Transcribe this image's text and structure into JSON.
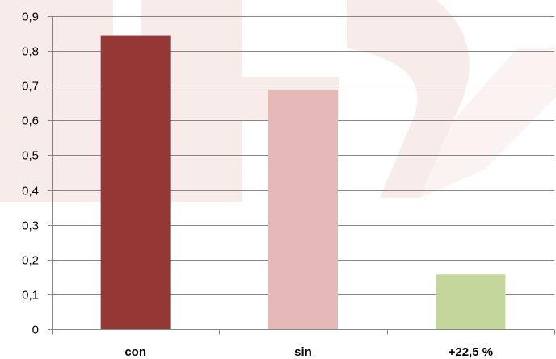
{
  "chart_data": {
    "type": "bar",
    "categories": [
      "con",
      "sin",
      "+22,5 %"
    ],
    "values": [
      0.843,
      0.688,
      0.157
    ],
    "bar_colors": [
      "#953735",
      "#e6b9b8",
      "#c3d69b"
    ],
    "ylim": [
      0,
      0.9
    ],
    "y_ticks": [
      0,
      0.1,
      0.2,
      0.3,
      0.4,
      0.5,
      0.6,
      0.7,
      0.8,
      0.9
    ],
    "y_tick_labels": [
      "0",
      "0,1",
      "0,2",
      "0,3",
      "0,4",
      "0,5",
      "0,6",
      "0,7",
      "0,8",
      "0,9"
    ],
    "grid": true,
    "grid_color": "#868686",
    "watermark_color": "#f2dcdb",
    "title": "",
    "xlabel": "",
    "ylabel": ""
  }
}
